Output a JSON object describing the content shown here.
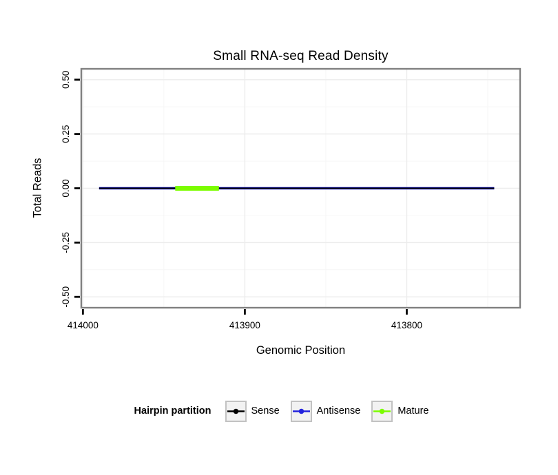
{
  "figure": {
    "background": "#ffffff"
  },
  "chart_data": {
    "type": "line",
    "title": "Small RNA-seq Read Density",
    "xlabel": "Genomic Position",
    "ylabel": "Total Reads",
    "x_axis": {
      "reversed": true,
      "range": [
        414001,
        413730
      ],
      "ticks": [
        414000,
        413900,
        413800
      ],
      "tick_labels": [
        "414000",
        "413900",
        "413800"
      ],
      "minor_ticks": [
        413950,
        413850,
        413750
      ]
    },
    "y_axis": {
      "range": [
        -0.55,
        0.55
      ],
      "ticks": [
        0.5,
        0.25,
        0,
        -0.25,
        -0.5
      ],
      "tick_labels": [
        "0.50",
        "0.25",
        "0.00",
        "-0.25",
        "-0.50"
      ],
      "minor_ticks": [
        0.375,
        0.125,
        -0.125,
        -0.375
      ]
    },
    "series": [
      {
        "name": "Antisense",
        "color": "#2222DD",
        "width": 3.4,
        "points": [
          {
            "x": 413990,
            "y": 0
          },
          {
            "x": 413746,
            "y": 0
          }
        ]
      },
      {
        "name": "Sense",
        "color": "#000000",
        "width": 2.1,
        "points": [
          {
            "x": 413990,
            "y": 0
          },
          {
            "x": 413746,
            "y": 0
          }
        ]
      },
      {
        "name": "Mature",
        "color": "#7CFC00",
        "width": 7,
        "points": [
          {
            "x": 413943,
            "y": 0
          },
          {
            "x": 413916,
            "y": 0
          }
        ]
      }
    ],
    "legend": {
      "title": "Hairpin partition",
      "position": "bottom",
      "entries": [
        {
          "label": "Sense",
          "color": "#000000"
        },
        {
          "label": "Antisense",
          "color": "#2222DD"
        },
        {
          "label": "Mature",
          "color": "#7CFC00"
        }
      ]
    },
    "grid": {
      "show": true,
      "major_color": "#ececec",
      "minor_color": "#f6f6f6"
    },
    "panel": {
      "background": "#ffffff",
      "border_color": "#808080",
      "tick_color": "#000000"
    }
  }
}
